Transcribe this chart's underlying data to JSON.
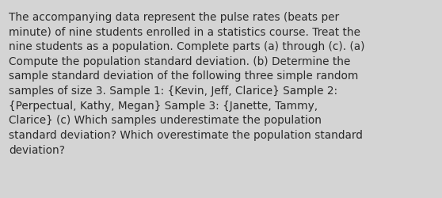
{
  "text_lines": [
    "The accompanying data represent the pulse rates (beats per",
    "minute) of nine students enrolled in a statistics course. Treat the",
    "nine students as a population. Complete parts (a) through (c). (a)",
    "Compute the population standard deviation. (b) Determine the",
    "sample standard deviation of the following three simple random",
    "samples of size 3. Sample 1: {Kevin, Jeff, Clarice} Sample 2:",
    "{Perpectual, Kathy, Megan} Sample 3: {Janette, Tammy,",
    "Clarice} (c) Which samples underestimate the population",
    "standard deviation? Which overestimate the population standard",
    "deviation?"
  ],
  "background_color": "#d4d4d4",
  "text_color": "#2a2a2a",
  "font_size": 9.8,
  "fig_width": 5.58,
  "fig_height": 2.51,
  "dpi": 100
}
